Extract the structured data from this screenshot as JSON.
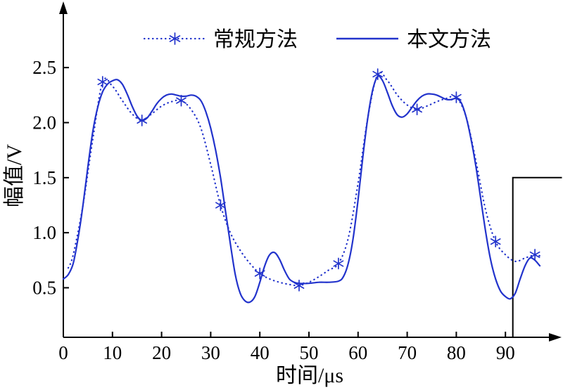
{
  "page": {
    "background": "#ffffff"
  },
  "chart_data": {
    "type": "line",
    "title": "",
    "xlabel": "时间/μs",
    "ylabel": "幅值/V",
    "xlim": [
      0,
      100
    ],
    "ylim": [
      0.05,
      3.05
    ],
    "xtick_values": [
      0,
      10,
      20,
      30,
      40,
      50,
      60,
      70,
      80,
      90
    ],
    "xtick_labels": [
      "0",
      "10",
      "20",
      "30",
      "40",
      "50",
      "60",
      "70",
      "80",
      "90"
    ],
    "ytick_values": [
      0.5,
      1.0,
      1.5,
      2.0,
      2.5
    ],
    "ytick_labels": [
      "0.5",
      "1.0",
      "1.5",
      "2.0",
      "2.5"
    ],
    "grid": false,
    "legend_position": "top-center",
    "axis_color": "#000000",
    "series": [
      {
        "name": "常规方法",
        "type": "line",
        "line_style": "dotted",
        "marker": "asterisk",
        "color": "#2233cc",
        "x": [
          1,
          2,
          4,
          6,
          8,
          10,
          12,
          14,
          16,
          18,
          20,
          22,
          24,
          26,
          28,
          30,
          32,
          34,
          36,
          38,
          40,
          42,
          44,
          46,
          48,
          50,
          52,
          54,
          56,
          58,
          60,
          62,
          64,
          66,
          68,
          70,
          72,
          74,
          76,
          78,
          80,
          82,
          84,
          86,
          88,
          90,
          92,
          94,
          96,
          97
        ],
        "y": [
          0.68,
          0.8,
          1.25,
          1.85,
          2.37,
          2.33,
          2.2,
          2.08,
          2.02,
          2.08,
          2.15,
          2.19,
          2.2,
          2.12,
          1.95,
          1.62,
          1.25,
          1.0,
          0.84,
          0.72,
          0.63,
          0.58,
          0.55,
          0.53,
          0.52,
          0.55,
          0.6,
          0.66,
          0.72,
          0.95,
          1.45,
          2.05,
          2.44,
          2.38,
          2.25,
          2.16,
          2.12,
          2.15,
          2.19,
          2.22,
          2.23,
          2.05,
          1.65,
          1.2,
          0.92,
          0.8,
          0.74,
          0.77,
          0.8,
          0.79
        ],
        "marker_x": [
          8,
          16,
          24,
          32,
          40,
          48,
          56,
          64,
          72,
          80,
          88,
          96
        ],
        "marker_y": [
          2.37,
          2.02,
          2.2,
          1.25,
          0.63,
          0.52,
          0.72,
          2.44,
          2.12,
          2.23,
          0.92,
          0.8
        ]
      },
      {
        "name": "本文方法",
        "type": "line",
        "line_style": "solid",
        "marker": "none",
        "color": "#2233cc",
        "x": [
          0,
          1,
          2,
          3,
          4,
          5,
          6,
          7,
          8,
          9,
          10,
          11,
          12,
          13,
          14,
          15,
          16,
          17,
          18,
          19,
          20,
          21,
          22,
          23,
          24,
          25,
          26,
          27,
          28,
          29,
          30,
          31,
          32,
          33,
          34,
          35,
          36,
          37,
          38,
          39,
          40,
          41,
          42,
          43,
          44,
          45,
          46,
          47,
          48,
          50,
          52,
          54,
          56,
          57,
          58,
          59,
          60,
          61,
          62,
          63,
          64,
          65,
          66,
          67,
          68,
          69,
          70,
          71,
          72,
          73,
          74,
          75,
          76,
          77,
          78,
          79,
          80,
          81,
          82,
          83,
          84,
          85,
          86,
          87,
          88,
          89,
          90,
          91,
          92,
          93,
          94,
          95,
          96,
          97
        ],
        "y": [
          0.58,
          0.62,
          0.72,
          0.95,
          1.25,
          1.6,
          1.92,
          2.14,
          2.28,
          2.35,
          2.38,
          2.39,
          2.35,
          2.26,
          2.15,
          2.06,
          2.02,
          2.04,
          2.1,
          2.17,
          2.22,
          2.25,
          2.26,
          2.25,
          2.24,
          2.24,
          2.25,
          2.24,
          2.2,
          2.1,
          1.95,
          1.75,
          1.5,
          1.2,
          0.9,
          0.62,
          0.45,
          0.38,
          0.37,
          0.42,
          0.55,
          0.7,
          0.8,
          0.82,
          0.76,
          0.66,
          0.58,
          0.55,
          0.54,
          0.54,
          0.55,
          0.55,
          0.56,
          0.6,
          0.72,
          0.95,
          1.3,
          1.7,
          2.05,
          2.3,
          2.42,
          2.38,
          2.27,
          2.15,
          2.07,
          2.05,
          2.08,
          2.14,
          2.2,
          2.24,
          2.26,
          2.26,
          2.25,
          2.23,
          2.21,
          2.21,
          2.22,
          2.18,
          2.05,
          1.85,
          1.6,
          1.3,
          1.0,
          0.75,
          0.58,
          0.47,
          0.42,
          0.4,
          0.45,
          0.58,
          0.7,
          0.77,
          0.75,
          0.7
        ]
      }
    ],
    "annotations": [
      {
        "name": "reference-step-line",
        "color": "#000000",
        "points_x": [
          91.5,
          91.5,
          101.5
        ],
        "points_y": [
          0.055,
          1.5,
          1.5
        ]
      }
    ]
  }
}
